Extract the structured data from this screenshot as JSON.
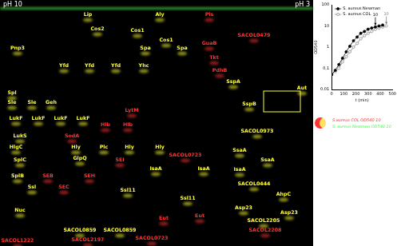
{
  "chart_data": {
    "type": "line",
    "x_label": "t (min)",
    "y_label": "OD540",
    "log": "y",
    "grid": false,
    "xlim": [
      0,
      500
    ],
    "xticks": [
      0,
      100,
      200,
      300,
      400,
      500
    ],
    "ylim": [
      0.01,
      100
    ],
    "yticks": [
      {
        "value": 0.01,
        "label": "0,01"
      },
      {
        "value": 0.1,
        "label": "0,1"
      },
      1,
      10,
      100
    ],
    "legend": "top-left",
    "series": [
      {
        "name": "S. aureus Newman",
        "color": "#000000",
        "marker": "circle",
        "x": [
          0,
          30,
          60,
          90,
          120,
          150,
          180,
          210,
          240,
          270,
          300,
          330,
          360,
          390,
          420
        ],
        "values": [
          0.05,
          0.08,
          0.15,
          0.3,
          0.6,
          1.1,
          2,
          3,
          4.5,
          5.5,
          7,
          8,
          9,
          10,
          11
        ]
      },
      {
        "name": "S. aureus COL",
        "color": "#808080",
        "marker": "circle_open",
        "x": [
          0,
          30,
          60,
          90,
          120,
          150,
          180,
          210,
          240,
          270,
          300,
          330,
          360,
          390,
          420,
          450
        ],
        "values": [
          0.05,
          0.07,
          0.1,
          0.2,
          0.35,
          0.6,
          1,
          1.5,
          2.5,
          3.5,
          4.5,
          5.5,
          7,
          8,
          9,
          10
        ]
      }
    ],
    "annotations": [
      {
        "text": "10",
        "x": 360,
        "y": 9,
        "color": "#000000"
      },
      {
        "text": "10",
        "x": 450,
        "y": 10,
        "color": "#808080"
      }
    ]
  },
  "gel": {
    "left_label": "pH 10",
    "right_label": "pH 3",
    "legend": [
      {
        "text": "S.aureus COL OD540 10",
        "color": "#ff3333"
      },
      {
        "text": "S. aureus Newman OD540 10",
        "color": "#44ff44"
      }
    ],
    "spots": [
      {
        "label": "Pnp3",
        "color": "#ffff33"
      },
      {
        "label": "Lip",
        "color": "#ffff33"
      },
      {
        "label": "Cos2",
        "color": "#ffff33"
      },
      {
        "label": "Cos1",
        "color": "#ffff33"
      },
      {
        "label": "Aly",
        "color": "#ffff33"
      },
      {
        "label": "Cos1",
        "color": "#ffff33"
      },
      {
        "label": "Pls",
        "color": "#ff3333"
      },
      {
        "label": "SACOL0479",
        "color": "#ff3333"
      },
      {
        "label": "Spa",
        "color": "#ffff33"
      },
      {
        "label": "Spa",
        "color": "#ffff33"
      },
      {
        "label": "GuaB",
        "color": "#ff3333"
      },
      {
        "label": "Tkt",
        "color": "#ff3333"
      },
      {
        "label": "Yfd",
        "color": "#ffff33"
      },
      {
        "label": "Yfd",
        "color": "#ffff33"
      },
      {
        "label": "Yfd",
        "color": "#ffff33"
      },
      {
        "label": "Yhc",
        "color": "#ffff33"
      },
      {
        "label": "PdhB",
        "color": "#ff3333"
      },
      {
        "label": "SspA",
        "color": "#ffff33"
      },
      {
        "label": "Aut",
        "color": "#ffff33"
      },
      {
        "label": "Spl",
        "color": "#ffff33"
      },
      {
        "label": "Sle",
        "color": "#ffff33"
      },
      {
        "label": "Sle",
        "color": "#ffff33"
      },
      {
        "label": "Geh",
        "color": "#ffff33"
      },
      {
        "label": "LytM",
        "color": "#ff3333"
      },
      {
        "label": "SspB",
        "color": "#ffff33"
      },
      {
        "label": "LukF",
        "color": "#ffff33"
      },
      {
        "label": "LukF",
        "color": "#ffff33"
      },
      {
        "label": "LukF",
        "color": "#ffff33"
      },
      {
        "label": "LukF",
        "color": "#ffff33"
      },
      {
        "label": "Hlb",
        "color": "#ff3333"
      },
      {
        "label": "Hlb",
        "color": "#ff3333"
      },
      {
        "label": "SACOL0973",
        "color": "#ffff33"
      },
      {
        "label": "LukS",
        "color": "#ffff33"
      },
      {
        "label": "SodA",
        "color": "#ff3333"
      },
      {
        "label": "HlgC",
        "color": "#ffff33"
      },
      {
        "label": "Hly",
        "color": "#ffff33"
      },
      {
        "label": "Plc",
        "color": "#ffff33"
      },
      {
        "label": "Hly",
        "color": "#ffff33"
      },
      {
        "label": "Hly",
        "color": "#ffff33"
      },
      {
        "label": "SACOL0723",
        "color": "#ff3333"
      },
      {
        "label": "SsaA",
        "color": "#ffff33"
      },
      {
        "label": "SsaA",
        "color": "#ffff33"
      },
      {
        "label": "GlpQ",
        "color": "#ffff33"
      },
      {
        "label": "SplC",
        "color": "#ffff33"
      },
      {
        "label": "SEI",
        "color": "#ff3333"
      },
      {
        "label": "IsaA",
        "color": "#ffff33"
      },
      {
        "label": "IsaA",
        "color": "#ffff33"
      },
      {
        "label": "IsaA",
        "color": "#ffff33"
      },
      {
        "label": "SplB",
        "color": "#ffff33"
      },
      {
        "label": "SEB",
        "color": "#ff3333"
      },
      {
        "label": "SEH",
        "color": "#ff3333"
      },
      {
        "label": "Ssl",
        "color": "#ffff33"
      },
      {
        "label": "SEC",
        "color": "#ff3333"
      },
      {
        "label": "Ssl11",
        "color": "#ffff33"
      },
      {
        "label": "SACOL0444",
        "color": "#ffff33"
      },
      {
        "label": "Ssl11",
        "color": "#ffff33"
      },
      {
        "label": "AhpC",
        "color": "#ffff33"
      },
      {
        "label": "Nuc",
        "color": "#ffff33"
      },
      {
        "label": "Asp23",
        "color": "#ffff33"
      },
      {
        "label": "Eut",
        "color": "#ff3333"
      },
      {
        "label": "Eut",
        "color": "#ff3333"
      },
      {
        "label": "SACOL2205",
        "color": "#ffff33"
      },
      {
        "label": "Asp23",
        "color": "#ffff33"
      },
      {
        "label": "SACOL2208",
        "color": "#ff3333"
      },
      {
        "label": "SACOL0859",
        "color": "#ffff33"
      },
      {
        "label": "SACOL0859",
        "color": "#ffff33"
      },
      {
        "label": "SACOL0723",
        "color": "#ff3333"
      },
      {
        "label": "SACOL2197",
        "color": "#ff3333"
      },
      {
        "label": "SACOL1222",
        "color": "#ff3333"
      }
    ]
  }
}
